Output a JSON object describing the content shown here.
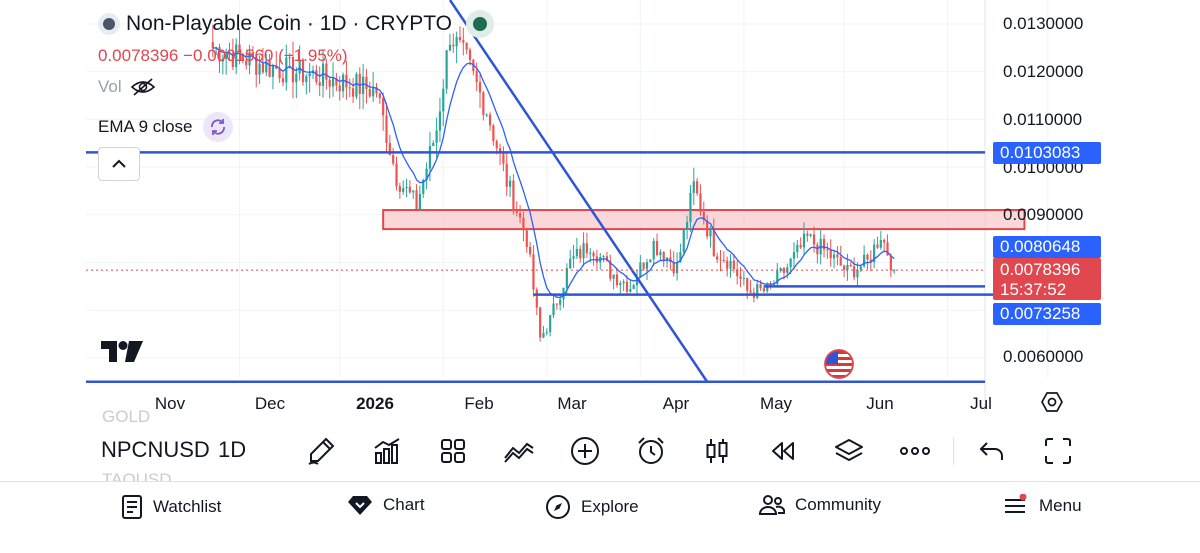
{
  "symbol": {
    "name": "Non-Playable Coin",
    "interval": "1D",
    "exchange": "CRYPTO",
    "title": "Non-Playable Coin · 1D · CRYPTO",
    "price_line": "0.0078396 −0.0001560 (−1.95%)",
    "vol_label": "Vol",
    "ema_label": "EMA 9 close"
  },
  "price_axis": {
    "labels": [
      "0.0130000",
      "0.0120000",
      "0.0110000",
      "0.0100000",
      "0.0090000",
      "0.0060000"
    ],
    "tags": {
      "resistance": "0.0103083",
      "ema": "0.0080648",
      "current_price": "0.0078396",
      "countdown": "15:37:52",
      "support": "0.0073258"
    }
  },
  "time_axis": {
    "labels": [
      "Nov",
      "Dec",
      "2026",
      "Feb",
      "Mar",
      "Apr",
      "May",
      "Jun",
      "Jul"
    ]
  },
  "colors": {
    "up": "#26a69a",
    "down": "#ef5350",
    "ema_line": "#2962ff",
    "drawing_line": "#2f55d4",
    "zone_fill": "#f8c9cc",
    "zone_border": "#e0474f",
    "price_tag": "#e0474f",
    "level_tag": "#2962ff"
  },
  "chart_data": {
    "type": "candlestick",
    "symbol": "NPCNUSD",
    "interval": "1D",
    "indicator": "EMA 9 close",
    "ylim": [
      0.0055,
      0.0135
    ],
    "last_price": 0.0078396,
    "change": -0.000156,
    "change_pct": -1.95,
    "horizontal_levels": [
      0.0103083,
      0.0073258,
      0.0055
    ],
    "resistance_zone": [
      0.0087,
      0.0091
    ],
    "anchors": [
      {
        "date": "2025-10-24",
        "close": 0.0125
      },
      {
        "date": "2025-11-10",
        "close": 0.0121
      },
      {
        "date": "2025-11-25",
        "close": 0.0119
      },
      {
        "date": "2025-12-12",
        "close": 0.0116
      },
      {
        "date": "2025-12-18",
        "close": 0.0098
      },
      {
        "date": "2025-12-24",
        "close": 0.0092
      },
      {
        "date": "2025-12-30",
        "close": 0.0108
      },
      {
        "date": "2026-01-03",
        "close": 0.0128
      },
      {
        "date": "2026-01-08",
        "close": 0.0122
      },
      {
        "date": "2026-01-14",
        "close": 0.0112
      },
      {
        "date": "2026-01-20",
        "close": 0.0097
      },
      {
        "date": "2026-01-26",
        "close": 0.0085
      },
      {
        "date": "2026-01-30",
        "close": 0.0064
      },
      {
        "date": "2026-02-02",
        "close": 0.0068
      },
      {
        "date": "2026-02-08",
        "close": 0.008
      },
      {
        "date": "2026-02-14",
        "close": 0.0084
      },
      {
        "date": "2026-02-20",
        "close": 0.0078
      },
      {
        "date": "2026-02-26",
        "close": 0.0075
      },
      {
        "date": "2026-03-05",
        "close": 0.0084
      },
      {
        "date": "2026-03-12",
        "close": 0.0079
      },
      {
        "date": "2026-03-17",
        "close": 0.0096
      },
      {
        "date": "2026-03-23",
        "close": 0.0083
      },
      {
        "date": "2026-03-28",
        "close": 0.008
      },
      {
        "date": "2026-04-02",
        "close": 0.0074
      },
      {
        "date": "2026-04-08",
        "close": 0.0074
      },
      {
        "date": "2026-04-14",
        "close": 0.0079
      },
      {
        "date": "2026-04-20",
        "close": 0.0085
      },
      {
        "date": "2026-04-26",
        "close": 0.0082
      },
      {
        "date": "2026-05-02",
        "close": 0.0078
      },
      {
        "date": "2026-05-08",
        "close": 0.008
      },
      {
        "date": "2026-05-12",
        "close": 0.0086
      },
      {
        "date": "2026-05-16",
        "close": 0.0078396
      }
    ]
  },
  "ghost_symbols": {
    "above": "GOLD",
    "below": "TAOUSD"
  },
  "toolbar": {
    "symbol": "NPCNUSD",
    "interval": "1D"
  },
  "nav": {
    "watchlist": "Watchlist",
    "chart": "Chart",
    "explore": "Explore",
    "community": "Community",
    "menu": "Menu"
  }
}
